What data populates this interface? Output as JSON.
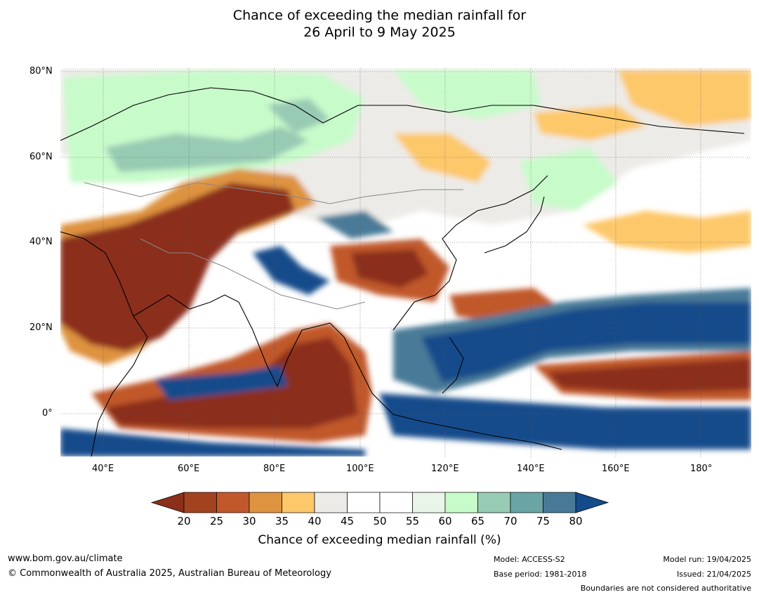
{
  "title_line1": "Chance of exceeding the median rainfall for",
  "title_line2": "26 April to 9 May 2025",
  "lat_labels": [
    "80°N",
    "60°N",
    "40°N",
    "20°N",
    "0°"
  ],
  "lon_labels": [
    "40°E",
    "60°E",
    "80°E",
    "100°E",
    "120°E",
    "140°E",
    "160°E",
    "180°"
  ],
  "colorbar": {
    "ticks": [
      "20",
      "25",
      "30",
      "35",
      "40",
      "45",
      "50",
      "55",
      "60",
      "65",
      "70",
      "75",
      "80"
    ],
    "label": "Chance of exceeding median rainfall (%)",
    "colors": [
      "#8b2f1a",
      "#a3421f",
      "#c1582c",
      "#de9340",
      "#fdc86a",
      "#edebe7",
      "#ffffff",
      "#ffffff",
      "#eaf5ea",
      "#c8fbca",
      "#98cbb4",
      "#6aa4a4",
      "#487a97",
      "#134b8b"
    ]
  },
  "footer": {
    "url": "www.bom.gov.au/climate",
    "copyright": "© Commonwealth of Australia 2025, Australian Bureau of Meteorology",
    "model": "Model: ACCESS-S2",
    "base_period": "Base period: 1981-2018",
    "model_run": "Model run: 19/04/2025",
    "issued": "Issued: 21/04/2025",
    "disclaimer": "Boundaries are not considered authoritative"
  }
}
